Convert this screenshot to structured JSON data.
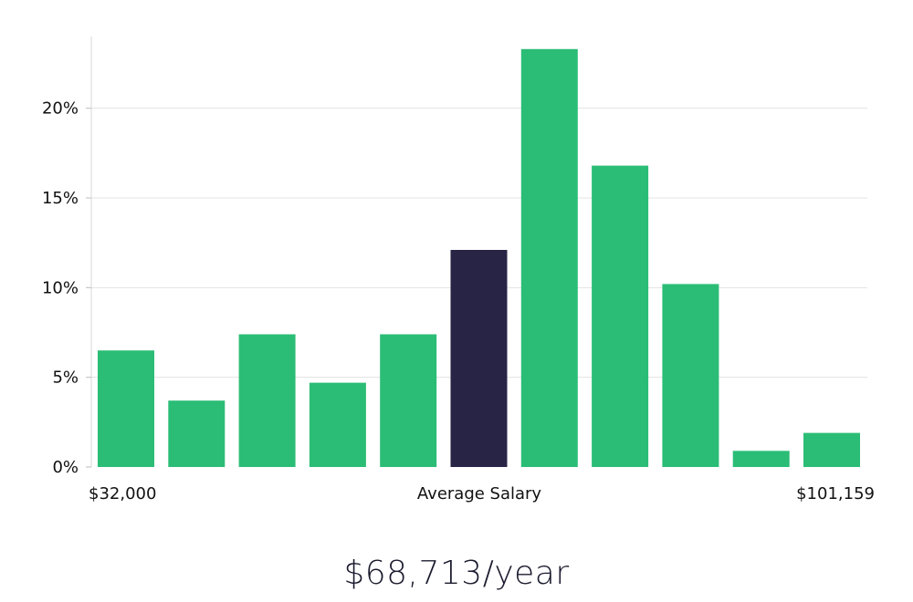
{
  "chart_data": {
    "type": "bar",
    "values": [
      6.5,
      3.7,
      7.4,
      4.7,
      7.4,
      12.1,
      23.3,
      16.8,
      10.2,
      0.9,
      1.9
    ],
    "highlight_index": 5,
    "ylim": [
      0,
      24
    ],
    "yticks": [
      "0%",
      "5%",
      "10%",
      "15%",
      "20%"
    ],
    "ytick_values": [
      0,
      5,
      10,
      15,
      20
    ],
    "grid": true,
    "x_start_label": "$32,000",
    "x_center_label": "Average Salary",
    "x_end_label": "$101,159",
    "colors": {
      "bar": "#2bbd76",
      "highlight": "#272445",
      "grid": "#e3e3e3",
      "axis": "#d8d8d8"
    }
  },
  "summary": "$68,713/year"
}
